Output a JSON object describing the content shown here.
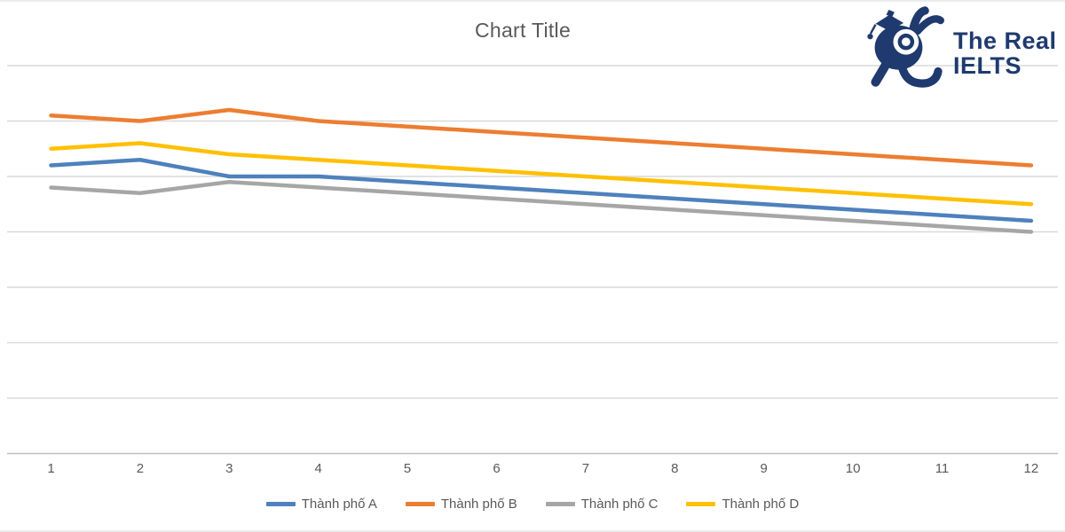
{
  "logo": {
    "line1": "The Real",
    "line2": "IELTS",
    "color": "#1f3a6e",
    "mark": "rabbit-graduation-cap-icon"
  },
  "chart_data": {
    "type": "line",
    "title": "Chart Title",
    "categories": [
      1,
      2,
      3,
      4,
      5,
      6,
      7,
      8,
      9,
      10,
      11,
      12
    ],
    "series": [
      {
        "name": "Thành phố A",
        "color": "#4e81bd",
        "values": [
          26,
          26.5,
          25,
          25,
          24.5,
          24,
          23.5,
          23,
          22.5,
          22,
          21.5,
          21
        ]
      },
      {
        "name": "Thành phố B",
        "color": "#ed7d31",
        "values": [
          30.5,
          30,
          31,
          30,
          29.5,
          29,
          28.5,
          28,
          27.5,
          27,
          26.5,
          26
        ]
      },
      {
        "name": "Thành phố C",
        "color": "#a6a6a6",
        "values": [
          24,
          23.5,
          24.5,
          24,
          23.5,
          23,
          22.5,
          22,
          21.5,
          21,
          20.5,
          20
        ]
      },
      {
        "name": "Thành phố D",
        "color": "#ffc000",
        "values": [
          27.5,
          28,
          27,
          26.5,
          26,
          25.5,
          25,
          24.5,
          24,
          23.5,
          23,
          22.5
        ]
      }
    ],
    "xlabel": "",
    "ylabel": "",
    "ylim": [
      0,
      35
    ],
    "y_gridline_step": 5,
    "y_axis_labels_visible": false,
    "grid": true,
    "legend_position": "bottom",
    "styles": {
      "grid_color": "#d9d9d9",
      "axis_color": "#bfbfbf",
      "text_color": "#595959",
      "title_color": "#595959",
      "background": "#ffffff",
      "line_width": 4.5
    }
  }
}
